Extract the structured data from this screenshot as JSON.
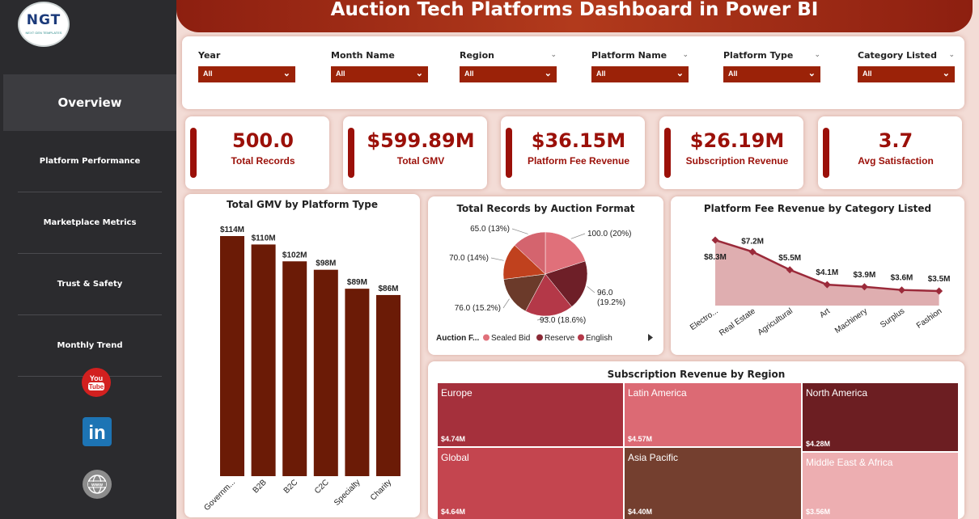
{
  "sidebar": {
    "logo_text": "NGT",
    "logo_sub": "NEXT GEN TEMPLATES",
    "active": "Overview",
    "items": [
      {
        "label": "Platform Performance"
      },
      {
        "label": "Marketplace Metrics"
      },
      {
        "label": "Trust & Safety"
      },
      {
        "label": "Monthly Trend"
      }
    ],
    "social": [
      {
        "icon": "youtube-icon",
        "text": "You Tube",
        "color": "#d2201f"
      },
      {
        "icon": "linkedin-icon",
        "text": "in",
        "color": "#1d74b4"
      },
      {
        "icon": "globe-icon",
        "text": "www",
        "color": "#8c8c8c"
      }
    ]
  },
  "header": {
    "title": "Auction Tech Platforms Dashboard in Power BI"
  },
  "slicers": [
    {
      "label": "Year",
      "value": "All"
    },
    {
      "label": "Month Name",
      "value": "All"
    },
    {
      "label": "Region",
      "value": "All"
    },
    {
      "label": "Platform Name",
      "value": "All"
    },
    {
      "label": "Platform Type",
      "value": "All"
    },
    {
      "label": "Category Listed",
      "value": "All"
    }
  ],
  "kpis": [
    {
      "value": "500.0",
      "label": "Total Records"
    },
    {
      "value": "$599.89M",
      "label": "Total GMV"
    },
    {
      "value": "$36.15M",
      "label": "Platform Fee Revenue"
    },
    {
      "value": "$26.19M",
      "label": "Subscription Revenue"
    },
    {
      "value": "3.7",
      "label": "Avg Satisfaction"
    }
  ],
  "colors": {
    "accent": "#9b1009",
    "banner": "#a22b14",
    "bar": "#6b1b06"
  },
  "chart_data": [
    {
      "type": "bar",
      "title": "Total GMV by Platform Type",
      "categories": [
        "Governm...",
        "B2B",
        "B2C",
        "C2C",
        "Specialty",
        "Charity"
      ],
      "values": [
        114,
        110,
        102,
        98,
        89,
        86
      ],
      "labels": [
        "$114M",
        "$110M",
        "$102M",
        "$98M",
        "$89M",
        "$86M"
      ],
      "unit": "M USD"
    },
    {
      "type": "pie",
      "title": "Total Records by Auction Format",
      "legend_title": "Auction F...",
      "legend": [
        "Sealed Bid",
        "Reserve",
        "English"
      ],
      "slices": [
        {
          "value": 100.0,
          "label": "100.0 (20%)",
          "color": "#e0707a"
        },
        {
          "value": 96.0,
          "label": "96.0 (19.2%)",
          "color": "#6e1f28"
        },
        {
          "value": 93.0,
          "label": "93.0 (18.6%)",
          "color": "#b43848"
        },
        {
          "value": 76.0,
          "label": "76.0 (15.2%)",
          "color": "#6b3a2a"
        },
        {
          "value": 70.0,
          "label": "70.0 (14%)",
          "color": "#c0411e"
        },
        {
          "value": 65.0,
          "label": "65.0 (13%)",
          "color": "#d4646e"
        }
      ],
      "legend_colors": [
        "#e0707a",
        "#8b2a36",
        "#b43848"
      ]
    },
    {
      "type": "area",
      "title": "Platform Fee Revenue by Category Listed",
      "categories": [
        "Electro...",
        "Real Estate",
        "Agricultural",
        "Art",
        "Machinery",
        "Surplus",
        "Fashion"
      ],
      "values": [
        8.3,
        7.2,
        5.5,
        4.1,
        3.9,
        3.6,
        3.5
      ],
      "labels": [
        "$8.3M",
        "$7.2M",
        "$5.5M",
        "$4.1M",
        "$3.9M",
        "$3.6M",
        "$3.5M"
      ],
      "unit": "M USD"
    },
    {
      "type": "treemap",
      "title": "Subscription Revenue by Region",
      "items": [
        {
          "name": "Europe",
          "label": "$4.74M",
          "value": 4.74,
          "color": "#a5303c"
        },
        {
          "name": "Latin America",
          "label": "$4.57M",
          "value": 4.57,
          "color": "#dc6a74"
        },
        {
          "name": "North America",
          "label": "$4.28M",
          "value": 4.28,
          "color": "#6c1e22"
        },
        {
          "name": "Global",
          "label": "$4.64M",
          "value": 4.64,
          "color": "#c4454f"
        },
        {
          "name": "Asia Pacific",
          "label": "$4.40M",
          "value": 4.4,
          "color": "#743f2f"
        },
        {
          "name": "Middle East & Africa",
          "label": "$3.56M",
          "value": 3.56,
          "color": "#edaeb1"
        }
      ]
    }
  ]
}
